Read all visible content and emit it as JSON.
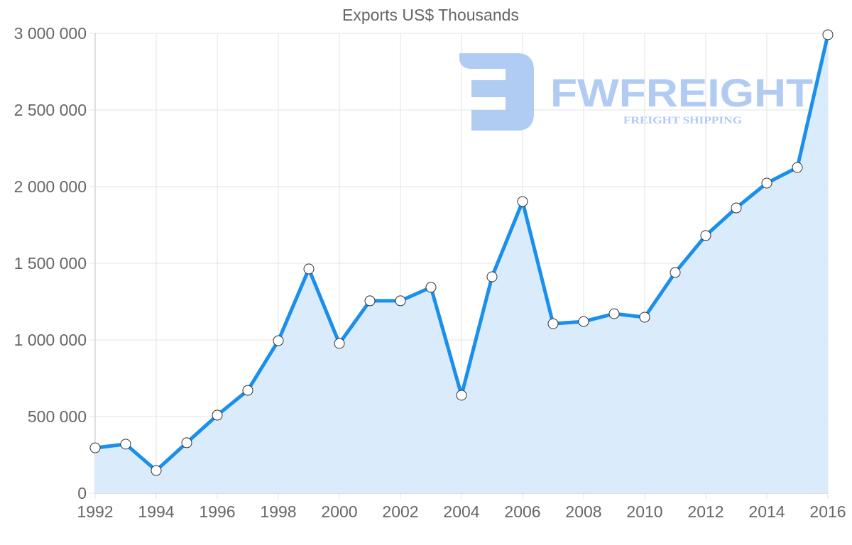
{
  "chart_data": {
    "type": "area",
    "title": "Exports US$ Thousands",
    "xlabel": "",
    "ylabel": "",
    "ylim": [
      0,
      3000000
    ],
    "grid": true,
    "legend": "none",
    "x": [
      1992,
      1993,
      1994,
      1995,
      1996,
      1997,
      1998,
      1999,
      2000,
      2001,
      2002,
      2003,
      2004,
      2005,
      2006,
      2007,
      2008,
      2009,
      2010,
      2011,
      2012,
      2013,
      2014,
      2015,
      2016
    ],
    "series": [
      {
        "name": "Exports US$ Thousands",
        "values": [
          296000,
          320000,
          148000,
          329000,
          509000,
          671000,
          995000,
          1463000,
          977000,
          1255000,
          1255000,
          1343000,
          639000,
          1412000,
          1903000,
          1106000,
          1120000,
          1171000,
          1148000,
          1440000,
          1681000,
          1861000,
          2023000,
          2125000,
          2991000
        ],
        "line_color": "#1a8fec",
        "fill_color": "#d8ebfc"
      }
    ],
    "y_ticks": [
      "0",
      "500 000",
      "1 000 000",
      "1 500 000",
      "2 000 000",
      "2 500 000",
      "3 000 000"
    ],
    "y_tick_values": [
      0,
      500000,
      1000000,
      1500000,
      2000000,
      2500000,
      3000000
    ],
    "x_ticks": [
      "1992",
      "1994",
      "1996",
      "1998",
      "2000",
      "2002",
      "2004",
      "2006",
      "2008",
      "2010",
      "2012",
      "2014",
      "2016"
    ]
  },
  "watermark": {
    "brand": "FWFREIGHT",
    "tagline": "FREIGHT SHIPPING",
    "color": "#a9c6f2"
  }
}
